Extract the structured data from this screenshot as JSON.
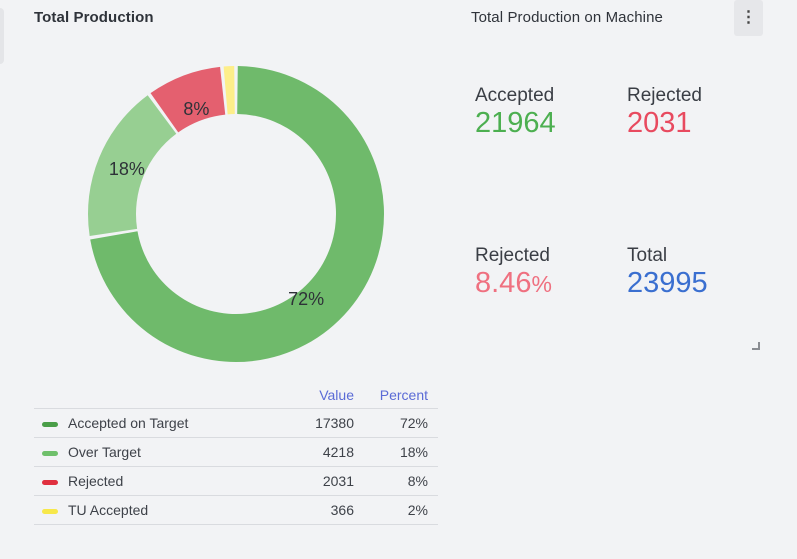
{
  "widget_left": {
    "title": "Total Production"
  },
  "widget_right": {
    "title": "Total Production on Machine",
    "menu_icon": "kebab-menu-icon",
    "menu_glyph": "⋮",
    "stats": [
      {
        "label": "Accepted",
        "value": "21964",
        "color": "#4caf50"
      },
      {
        "label": "Rejected",
        "value": "2031",
        "color": "#e84a5f"
      },
      {
        "label": "Rejected",
        "value": "8.46",
        "unit": "%",
        "color": "#ef7080"
      },
      {
        "label": "Total",
        "value": "23995",
        "color": "#3a6fd0"
      }
    ]
  },
  "chart_data": {
    "type": "pie",
    "donut": true,
    "title": "Total Production",
    "start_angle_deg": 0,
    "direction": "clockwise",
    "slices": [
      {
        "name": "Accepted on Target",
        "value": 17380,
        "percent": "72%",
        "color": "#6fba6b",
        "legend_color": "#4a9e48",
        "show_label": true
      },
      {
        "name": "Over Target",
        "value": 4218,
        "percent": "18%",
        "color": "#97cf92",
        "legend_color": "#6fc06b",
        "show_label": true
      },
      {
        "name": "Rejected",
        "value": 2031,
        "percent": "8%",
        "color": "#e4606f",
        "legend_color": "#e0303f",
        "show_label": true
      },
      {
        "name": "TU Accepted",
        "value": 366,
        "percent": "2%",
        "color": "#fdee8a",
        "legend_color": "#f7e84a",
        "show_label": false
      }
    ],
    "legend": {
      "placement": "bottom",
      "columns": [
        "Value",
        "Percent"
      ]
    }
  }
}
